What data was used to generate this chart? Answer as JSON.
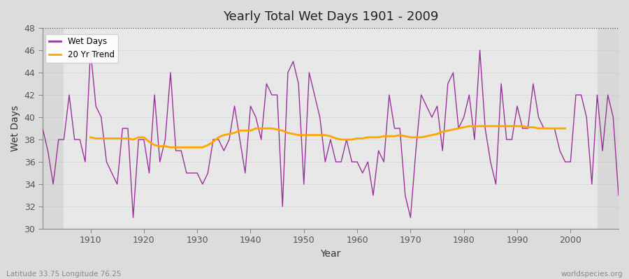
{
  "title": "Yearly Total Wet Days 1901 - 2009",
  "xlabel": "Year",
  "ylabel": "Wet Days",
  "footer_left": "Latitude 33.75 Longitude 76.25",
  "footer_right": "worldspecies.org",
  "bg_color": "#dcdcdc",
  "plot_bg_color": "#d8d8d8",
  "band_color": "#e8e8e8",
  "wet_days_color": "#993399",
  "trend_color": "#FFA500",
  "ylim": [
    30,
    48
  ],
  "xlim": [
    1901,
    2009
  ],
  "yticks": [
    30,
    32,
    34,
    36,
    38,
    40,
    42,
    44,
    46,
    48
  ],
  "xticks": [
    1910,
    1920,
    1930,
    1940,
    1950,
    1960,
    1970,
    1980,
    1990,
    2000
  ],
  "wet_days": {
    "1901": 39,
    "1902": 37,
    "1903": 34,
    "1904": 38,
    "1905": 38,
    "1906": 42,
    "1907": 38,
    "1908": 38,
    "1909": 36,
    "1910": 46,
    "1911": 41,
    "1912": 40,
    "1913": 36,
    "1914": 35,
    "1915": 34,
    "1916": 39,
    "1917": 39,
    "1918": 31,
    "1919": 38,
    "1920": 38,
    "1921": 35,
    "1922": 42,
    "1923": 36,
    "1924": 38,
    "1925": 44,
    "1926": 37,
    "1927": 37,
    "1928": 35,
    "1929": 35,
    "1930": 35,
    "1931": 34,
    "1932": 35,
    "1933": 38,
    "1934": 38,
    "1935": 37,
    "1936": 38,
    "1937": 41,
    "1938": 38,
    "1939": 35,
    "1940": 41,
    "1941": 40,
    "1942": 38,
    "1943": 43,
    "1944": 42,
    "1945": 42,
    "1946": 32,
    "1947": 44,
    "1948": 45,
    "1949": 43,
    "1950": 34,
    "1951": 44,
    "1952": 42,
    "1953": 40,
    "1954": 36,
    "1955": 38,
    "1956": 36,
    "1957": 36,
    "1958": 38,
    "1959": 36,
    "1960": 36,
    "1961": 35,
    "1962": 36,
    "1963": 33,
    "1964": 37,
    "1965": 36,
    "1966": 42,
    "1967": 39,
    "1968": 39,
    "1969": 33,
    "1970": 31,
    "1971": 37,
    "1972": 42,
    "1973": 41,
    "1974": 40,
    "1975": 41,
    "1976": 37,
    "1977": 43,
    "1978": 44,
    "1979": 39,
    "1980": 40,
    "1981": 42,
    "1982": 38,
    "1983": 46,
    "1984": 39,
    "1985": 36,
    "1986": 34,
    "1987": 43,
    "1988": 38,
    "1989": 38,
    "1990": 41,
    "1991": 39,
    "1992": 39,
    "1993": 43,
    "1994": 40,
    "1995": 39,
    "1996": 39,
    "1997": 39,
    "1998": 37,
    "1999": 36,
    "2000": 36,
    "2001": 42,
    "2002": 42,
    "2003": 40,
    "2004": 34,
    "2005": 42,
    "2006": 37,
    "2007": 42,
    "2008": 40,
    "2009": 33
  },
  "trend": {
    "1910": 38.2,
    "1911": 38.1,
    "1912": 38.1,
    "1913": 38.1,
    "1914": 38.1,
    "1915": 38.1,
    "1916": 38.1,
    "1917": 38.1,
    "1918": 38.0,
    "1919": 38.2,
    "1920": 38.2,
    "1921": 37.8,
    "1922": 37.5,
    "1923": 37.4,
    "1924": 37.4,
    "1925": 37.3,
    "1926": 37.3,
    "1927": 37.3,
    "1928": 37.3,
    "1929": 37.3,
    "1930": 37.3,
    "1931": 37.3,
    "1932": 37.5,
    "1933": 37.8,
    "1934": 38.2,
    "1935": 38.4,
    "1936": 38.5,
    "1937": 38.6,
    "1938": 38.8,
    "1939": 38.8,
    "1940": 38.8,
    "1941": 39.0,
    "1942": 39.0,
    "1943": 39.0,
    "1944": 39.0,
    "1945": 38.9,
    "1946": 38.8,
    "1947": 38.6,
    "1948": 38.5,
    "1949": 38.4,
    "1950": 38.4,
    "1951": 38.4,
    "1952": 38.4,
    "1953": 38.4,
    "1954": 38.4,
    "1955": 38.3,
    "1956": 38.1,
    "1957": 38.0,
    "1958": 38.0,
    "1959": 38.0,
    "1960": 38.1,
    "1961": 38.1,
    "1962": 38.2,
    "1963": 38.2,
    "1964": 38.2,
    "1965": 38.3,
    "1966": 38.3,
    "1967": 38.3,
    "1968": 38.4,
    "1969": 38.3,
    "1970": 38.2,
    "1971": 38.2,
    "1972": 38.2,
    "1973": 38.3,
    "1974": 38.4,
    "1975": 38.5,
    "1976": 38.7,
    "1977": 38.8,
    "1978": 38.9,
    "1979": 39.0,
    "1980": 39.1,
    "1981": 39.2,
    "1982": 39.2,
    "1983": 39.2,
    "1984": 39.2,
    "1985": 39.2,
    "1986": 39.2,
    "1987": 39.2,
    "1988": 39.2,
    "1989": 39.2,
    "1990": 39.2,
    "1991": 39.2,
    "1992": 39.1,
    "1993": 39.1,
    "1994": 39.0,
    "1995": 39.0,
    "1996": 39.0,
    "1997": 39.0,
    "1998": 39.0,
    "1999": 39.0
  }
}
